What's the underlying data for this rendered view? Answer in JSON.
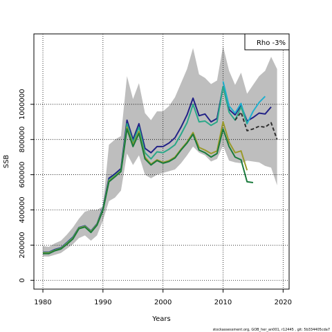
{
  "chart_data": {
    "type": "line",
    "title": "",
    "xlabel": "Years",
    "ylabel": "SSB",
    "xlim": [
      1978.5,
      2021
    ],
    "ylim": [
      -50000,
      1400000
    ],
    "x_ticks": [
      1980,
      1990,
      2000,
      2010,
      2020
    ],
    "x_tick_labels": [
      "1980",
      "1990",
      "2000",
      "2010",
      "2020"
    ],
    "y_ticks": [
      0,
      200000,
      400000,
      600000,
      800000,
      1000000
    ],
    "y_tick_labels": [
      "0",
      "200000",
      "400000",
      "600000",
      "800000",
      "1000000"
    ],
    "grid": true,
    "legend_text": "Rho -3%",
    "legend_position": "top-right",
    "footer": "stockassessment.org, GOB_her_an001, r12445 , git: 5b334405cda7",
    "band": {
      "name": "confidence interval",
      "color": "#bebebe",
      "x": [
        1980,
        1981,
        1982,
        1983,
        1984,
        1985,
        1986,
        1987,
        1988,
        1989,
        1990,
        1991,
        1992,
        1993,
        1994,
        1995,
        1996,
        1997,
        1998,
        1999,
        2000,
        2001,
        2002,
        2003,
        2004,
        2005,
        2006,
        2007,
        2008,
        2009,
        2010,
        2011,
        2012,
        2013,
        2014,
        2015,
        2016,
        2017,
        2018,
        2019
      ],
      "lower": [
        135000,
        135000,
        145000,
        155000,
        180000,
        205000,
        240000,
        255000,
        225000,
        255000,
        340000,
        450000,
        470000,
        510000,
        720000,
        655000,
        710000,
        600000,
        580000,
        600000,
        610000,
        620000,
        630000,
        665000,
        710000,
        760000,
        725000,
        710000,
        675000,
        690000,
        765000,
        680000,
        670000,
        665000,
        680000,
        675000,
        670000,
        650000,
        640000,
        540000
      ],
      "upper": [
        195000,
        190000,
        210000,
        225000,
        260000,
        300000,
        350000,
        390000,
        400000,
        400000,
        420000,
        770000,
        800000,
        820000,
        1160000,
        1030000,
        1120000,
        950000,
        910000,
        960000,
        960000,
        990000,
        1040000,
        1120000,
        1200000,
        1320000,
        1170000,
        1150000,
        1115000,
        1135000,
        1330000,
        1190000,
        1110000,
        1180000,
        1060000,
        1110000,
        1160000,
        1190000,
        1270000,
        1200000
      ]
    },
    "series": [
      {
        "color": "#222286",
        "x": [
          1980,
          1981,
          1982,
          1983,
          1984,
          1985,
          1986,
          1987,
          1988,
          1989,
          1990,
          1991,
          1992,
          1993,
          1994,
          1995,
          1996,
          1997,
          1998,
          1999,
          2000,
          2001,
          2002,
          2003,
          2004,
          2005,
          2006,
          2007,
          2008,
          2009,
          2010,
          2011,
          2012,
          2013,
          2014,
          2015,
          2016,
          2017,
          2018
        ],
        "values": [
          160000,
          160000,
          175000,
          185000,
          215000,
          245000,
          300000,
          310000,
          280000,
          320000,
          410000,
          580000,
          605000,
          635000,
          910000,
          800000,
          890000,
          750000,
          725000,
          760000,
          760000,
          780000,
          810000,
          870000,
          940000,
          1035000,
          935000,
          945000,
          900000,
          920000,
          1100000,
          970000,
          940000,
          995000,
          905000,
          925000,
          950000,
          945000,
          985000
        ]
      },
      {
        "color": "#1fb0cf",
        "x": [
          2010,
          2011,
          2012,
          2013,
          2014,
          2015,
          2016,
          2017
        ],
        "values": [
          1130000,
          990000,
          950000,
          1005000,
          890000,
          960000,
          1010000,
          1045000
        ]
      },
      {
        "color": "#2aa889",
        "x": [
          1980,
          1981,
          1982,
          1983,
          1984,
          1985,
          1986,
          1987,
          1988,
          1989,
          1990,
          1991,
          1992,
          1993,
          1994,
          1995,
          1996,
          1997,
          1998,
          1999,
          2000,
          2001,
          2002,
          2003,
          2004,
          2005,
          2006,
          2007,
          2008,
          2009,
          2010,
          2011,
          2012,
          2013,
          2014
        ],
        "values": [
          158000,
          158000,
          172000,
          182000,
          212000,
          242000,
          298000,
          308000,
          278000,
          318000,
          405000,
          570000,
          596000,
          625000,
          890000,
          785000,
          870000,
          725000,
          690000,
          730000,
          725000,
          745000,
          770000,
          830000,
          895000,
          1000000,
          900000,
          905000,
          880000,
          900000,
          1100000,
          955000,
          910000,
          985000,
          890000
        ]
      },
      {
        "color": "#2f2f2f",
        "dashed": true,
        "x": [
          2012,
          2013,
          2014,
          2015,
          2016,
          2017,
          2018,
          2019
        ],
        "values": [
          910000,
          955000,
          850000,
          860000,
          875000,
          870000,
          895000,
          800000
        ]
      },
      {
        "color": "#9a9a2a",
        "x": [
          1980,
          1981,
          1982,
          1983,
          1984,
          1985,
          1986,
          1987,
          1988,
          1989,
          1990,
          1991,
          1992,
          1993,
          1994,
          1995,
          1996,
          1997,
          1998,
          1999,
          2000,
          2001,
          2002,
          2003,
          2004,
          2005,
          2006,
          2007,
          2008,
          2009,
          2010,
          2011,
          2012,
          2013,
          2014
        ],
        "values": [
          155000,
          155000,
          170000,
          180000,
          208000,
          238000,
          296000,
          306000,
          275000,
          316000,
          400000,
          565000,
          592000,
          622000,
          870000,
          770000,
          845000,
          700000,
          660000,
          685000,
          670000,
          680000,
          700000,
          745000,
          785000,
          840000,
          755000,
          740000,
          720000,
          735000,
          900000,
          785000,
          725000,
          735000,
          625000
        ]
      },
      {
        "color": "#1a7a3c",
        "x": [
          1980,
          1981,
          1982,
          1983,
          1984,
          1985,
          1986,
          1987,
          1988,
          1989,
          1990,
          1991,
          1992,
          1993,
          1994,
          1995,
          1996,
          1997,
          1998,
          1999,
          2000,
          2001,
          2002,
          2003,
          2004,
          2005,
          2006,
          2007,
          2008,
          2009,
          2010,
          2011,
          2012,
          2013,
          2014,
          2015
        ],
        "values": [
          152000,
          152000,
          168000,
          178000,
          205000,
          235000,
          293000,
          303000,
          272000,
          313000,
          397000,
          560000,
          588000,
          618000,
          860000,
          760000,
          835000,
          690000,
          655000,
          680000,
          665000,
          675000,
          695000,
          740000,
          780000,
          830000,
          740000,
          725000,
          700000,
          720000,
          860000,
          760000,
          700000,
          685000,
          560000,
          555000
        ]
      }
    ]
  }
}
